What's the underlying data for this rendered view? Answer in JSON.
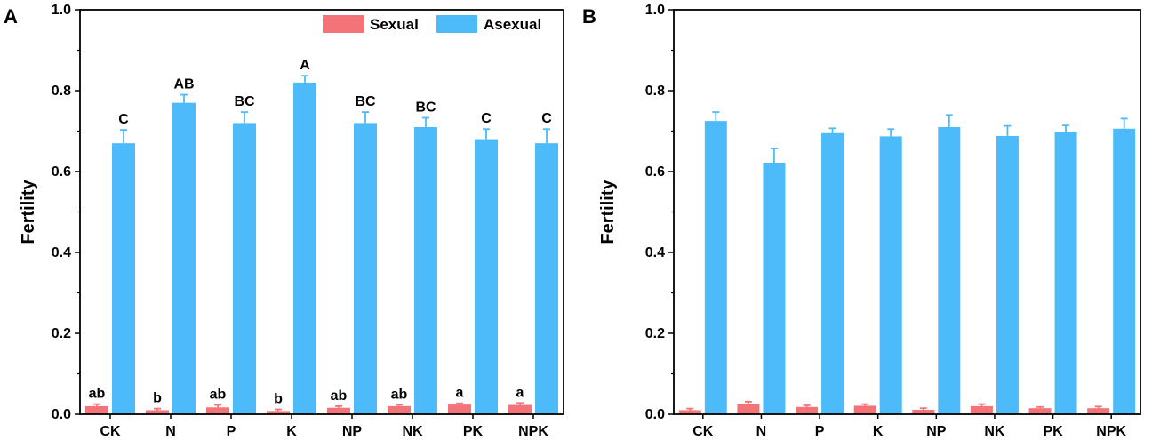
{
  "chart_data": [
    {
      "type": "bar",
      "panel": "A",
      "ylabel": "Fertility",
      "ylim": [
        0,
        1.0
      ],
      "yticks": [
        "0.0",
        "0.2",
        "0.4",
        "0.6",
        "0.8",
        "1.0"
      ],
      "categories": [
        "CK",
        "N",
        "P",
        "K",
        "NP",
        "NK",
        "PK",
        "NPK"
      ],
      "legend": {
        "position": "top-right"
      },
      "series": [
        {
          "name": "Sexual",
          "color": "#F47378",
          "values": [
            0.02,
            0.01,
            0.017,
            0.008,
            0.016,
            0.02,
            0.024,
            0.023
          ],
          "errors": [
            0.005,
            0.004,
            0.006,
            0.004,
            0.004,
            0.003,
            0.003,
            0.005
          ],
          "labels": [
            "ab",
            "b",
            "ab",
            "b",
            "ab",
            "ab",
            "a",
            "a"
          ]
        },
        {
          "name": "Asexual",
          "color": "#4DBBF9",
          "values": [
            0.67,
            0.77,
            0.72,
            0.82,
            0.72,
            0.71,
            0.68,
            0.67
          ],
          "errors": [
            0.033,
            0.02,
            0.027,
            0.017,
            0.027,
            0.023,
            0.025,
            0.035
          ],
          "labels": [
            "C",
            "AB",
            "BC",
            "A",
            "BC",
            "BC",
            "C",
            "C"
          ]
        }
      ]
    },
    {
      "type": "bar",
      "panel": "B",
      "ylabel": "Fertility",
      "ylim": [
        0,
        1.0
      ],
      "yticks": [
        "0.0",
        "0.2",
        "0.4",
        "0.6",
        "0.8",
        "1.0"
      ],
      "categories": [
        "CK",
        "N",
        "P",
        "K",
        "NP",
        "NK",
        "PK",
        "NPK"
      ],
      "series": [
        {
          "name": "Sexual",
          "color": "#F47378",
          "values": [
            0.01,
            0.025,
            0.018,
            0.021,
            0.011,
            0.02,
            0.015,
            0.015
          ],
          "errors": [
            0.004,
            0.006,
            0.004,
            0.004,
            0.004,
            0.005,
            0.003,
            0.004
          ]
        },
        {
          "name": "Asexual",
          "color": "#4DBBF9",
          "values": [
            0.725,
            0.622,
            0.695,
            0.687,
            0.71,
            0.688,
            0.697,
            0.706
          ],
          "errors": [
            0.022,
            0.035,
            0.012,
            0.018,
            0.03,
            0.025,
            0.017,
            0.025
          ]
        }
      ]
    }
  ]
}
